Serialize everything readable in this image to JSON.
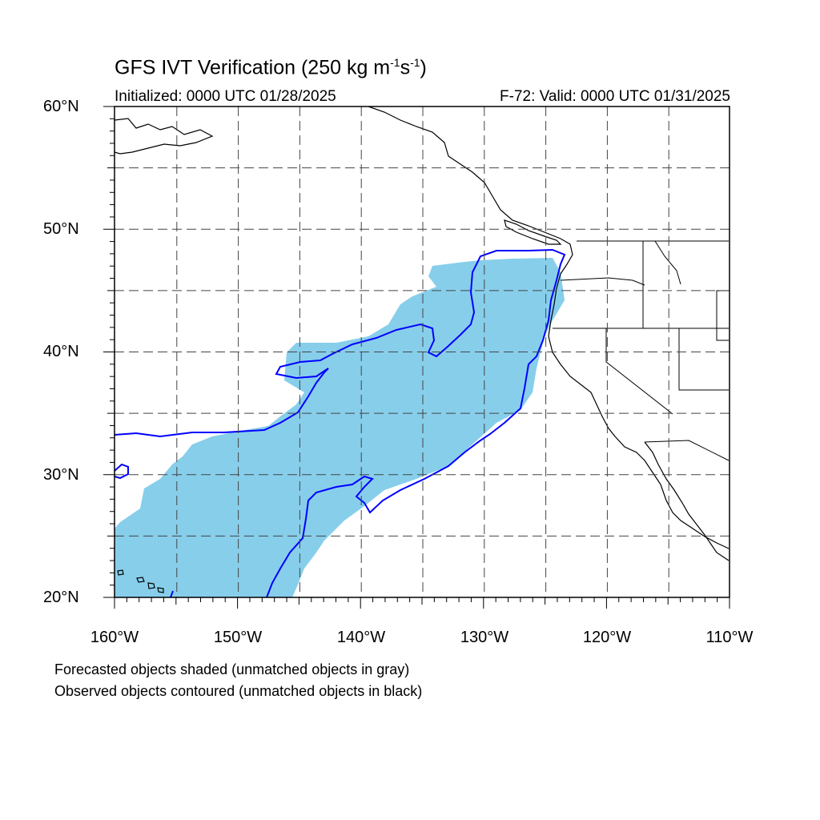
{
  "title": {
    "main_prefix": "GFS IVT Verification (250 kg m",
    "exp1": "-1",
    "mid": "s",
    "exp2": "-1",
    "suffix": ")"
  },
  "subtitle": {
    "initialized": "Initialized: 0000 UTC 01/28/2025",
    "valid": "F-72: Valid: 0000 UTC 01/31/2025"
  },
  "lat_labels": [
    "60°N",
    "50°N",
    "40°N",
    "30°N",
    "20°N"
  ],
  "lon_labels": [
    "160°W",
    "150°W",
    "140°W",
    "130°W",
    "120°W",
    "110°W"
  ],
  "legend_notes": [
    "Forecasted objects shaded (unmatched objects in gray)",
    "Observed objects contoured (unmatched objects in black)"
  ],
  "colors": {
    "forecast_fill": "#87ceeb",
    "observed_contour": "#0000ff",
    "coastline": "#000000",
    "grid": "#555555"
  },
  "map": {
    "lon_range": [
      -160,
      -110
    ],
    "lat_range": [
      20,
      60
    ],
    "grid": "dashed"
  }
}
